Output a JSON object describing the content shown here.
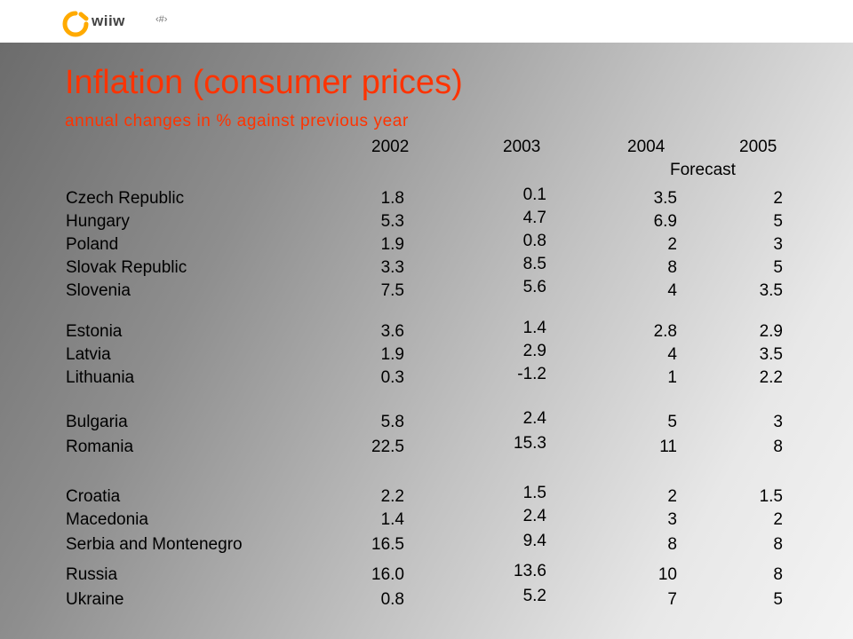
{
  "logo": {
    "text": "wiiw"
  },
  "slide_number": "‹#›",
  "title": "Inflation (consumer prices)",
  "subtitle": "annual changes in % against previous year",
  "columns": [
    "2002",
    "2003",
    "2004",
    "2005"
  ],
  "forecast_label": "Forecast",
  "rows": [
    {
      "country": "Czech Republic",
      "y2002": "1.8",
      "y2003": "0.1",
      "y2004": "3.5",
      "y2005": "2"
    },
    {
      "country": "Hungary",
      "y2002": "5.3",
      "y2003": "4.7",
      "y2004": "6.9",
      "y2005": "5"
    },
    {
      "country": "Poland",
      "y2002": "1.9",
      "y2003": "0.8",
      "y2004": "2",
      "y2005": "3"
    },
    {
      "country": "Slovak Republic",
      "y2002": "3.3",
      "y2003": "8.5",
      "y2004": "8",
      "y2005": "5"
    },
    {
      "country": "Slovenia",
      "y2002": "7.5",
      "y2003": "5.6",
      "y2004": "4",
      "y2005": "3.5"
    },
    {
      "country": "Estonia",
      "y2002": "3.6",
      "y2003": "1.4",
      "y2004": "2.8",
      "y2005": "2.9"
    },
    {
      "country": "Latvia",
      "y2002": "1.9",
      "y2003": "2.9",
      "y2004": "4",
      "y2005": "3.5"
    },
    {
      "country": "Lithuania",
      "y2002": "0.3",
      "y2003": "-1.2",
      "y2004": "1",
      "y2005": "2.2"
    },
    {
      "country": "Bulgaria",
      "y2002": "5.8",
      "y2003": "2.4",
      "y2004": "5",
      "y2005": "3"
    },
    {
      "country": "Romania",
      "y2002": "22.5",
      "y2003": "15.3",
      "y2004": "11",
      "y2005": "8"
    },
    {
      "country": "Croatia",
      "y2002": "2.2",
      "y2003": "1.5",
      "y2004": "2",
      "y2005": "1.5"
    },
    {
      "country": "Macedonia",
      "y2002": "1.4",
      "y2003": "2.4",
      "y2004": "3",
      "y2005": "2"
    },
    {
      "country": "Serbia and  Montenegro",
      "y2002": "16.5",
      "y2003": "9.4",
      "y2004": "8",
      "y2005": "8"
    },
    {
      "country": "Russia",
      "y2002": "16.0",
      "y2003": "13.6",
      "y2004": "10",
      "y2005": "8"
    },
    {
      "country": "Ukraine",
      "y2002": "0.8",
      "y2003": "5.2",
      "y2004": "7",
      "y2005": "5"
    }
  ],
  "colors": {
    "accent": "#ff3300",
    "logo_ring": "#ffaa00"
  }
}
